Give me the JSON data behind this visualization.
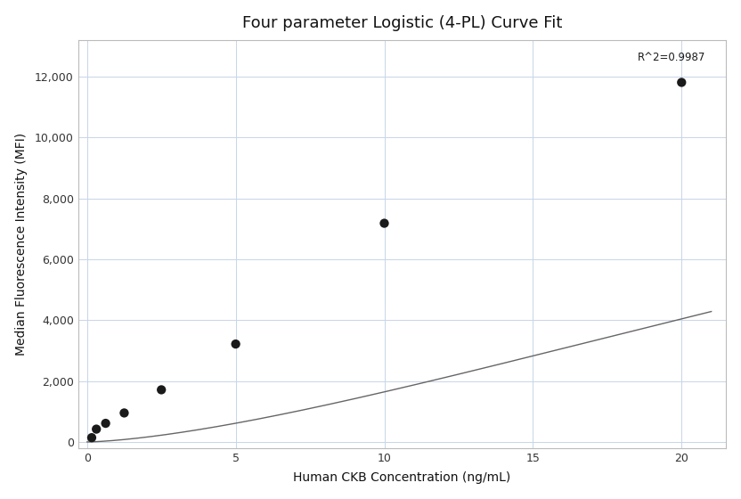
{
  "title": "Four parameter Logistic (4-PL) Curve Fit",
  "xlabel": "Human CKB Concentration (ng/mL)",
  "ylabel": "Median Fluorescence Intensity (MFI)",
  "x_data": [
    0.156,
    0.313,
    0.625,
    1.25,
    2.5,
    5.0,
    10.0,
    20.0
  ],
  "y_data": [
    150,
    430,
    620,
    960,
    1720,
    3220,
    7180,
    11800
  ],
  "xlim": [
    -0.3,
    21.5
  ],
  "ylim": [
    -200,
    13200
  ],
  "xticks": [
    0,
    5,
    10,
    15,
    20
  ],
  "yticks": [
    0,
    2000,
    4000,
    6000,
    8000,
    10000,
    12000
  ],
  "ytick_labels": [
    "0",
    "2,000",
    "4,000",
    "6,000",
    "8,000",
    "10,000",
    "12,000"
  ],
  "r2_text": "R^2=0.9987",
  "r2_x": 20.8,
  "r2_y": 12800,
  "dot_color": "#1a1a1a",
  "line_color": "#666666",
  "grid_color": "#c8d4e8",
  "background_color": "#ffffff",
  "title_fontsize": 13,
  "label_fontsize": 10,
  "tick_fontsize": 9,
  "annotation_fontsize": 8.5,
  "figsize": [
    8.32,
    5.6
  ],
  "dpi": 100
}
